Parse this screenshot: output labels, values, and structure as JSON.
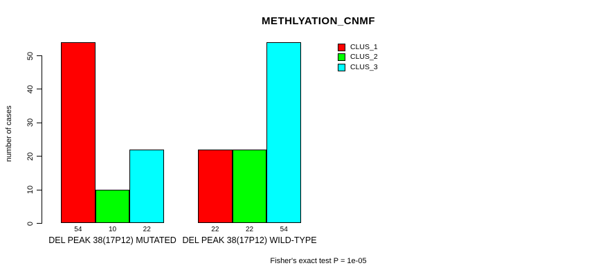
{
  "title": "METHLYATION_CNMF",
  "y_axis_title": "number of cases",
  "footnote": "Fisher's exact test P = 1e-05",
  "chart_data": {
    "type": "bar",
    "title": "METHLYATION_CNMF",
    "xlabel": "",
    "ylabel": "number of cases",
    "ylim": [
      0,
      50
    ],
    "yticks": [
      0,
      10,
      20,
      30,
      40,
      50
    ],
    "grid": false,
    "categories": [
      "DEL PEAK 38(17P12) MUTATED",
      "DEL PEAK 38(17P12) WILD-TYPE"
    ],
    "series": [
      {
        "name": "CLUS_1",
        "color": "#ff0000",
        "values": [
          54,
          22
        ]
      },
      {
        "name": "CLUS_2",
        "color": "#00ff00",
        "values": [
          10,
          22
        ]
      },
      {
        "name": "CLUS_3",
        "color": "#00ffff",
        "values": [
          22,
          54
        ]
      }
    ],
    "bar_value_labels": [
      [
        "54",
        "10",
        "22"
      ],
      [
        "22",
        "22",
        "54"
      ]
    ],
    "legend_position": "top-right",
    "legend_entries": [
      "CLUS_1",
      "CLUS_2",
      "CLUS_3"
    ],
    "annotations": [
      "Fisher's exact test P = 1e-05"
    ]
  }
}
